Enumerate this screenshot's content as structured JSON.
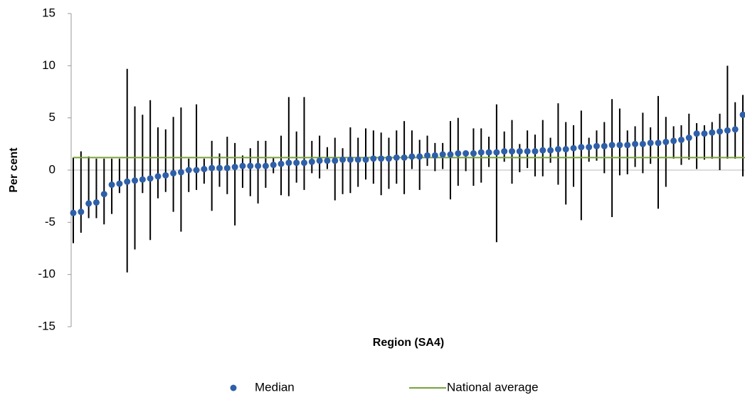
{
  "chart_data": {
    "type": "errorbar",
    "y_label": "Per cent",
    "x_label": "Region (SA4)",
    "categories": [
      null,
      null,
      null,
      null,
      null,
      null,
      null,
      null,
      null,
      null,
      null,
      null,
      null,
      null,
      null,
      null,
      null,
      null,
      null,
      null,
      null,
      null,
      null,
      null,
      null,
      null,
      null,
      null,
      null,
      null,
      null,
      null,
      null,
      null,
      null,
      null,
      null,
      null,
      null,
      null,
      null,
      null,
      null,
      null,
      null,
      null,
      null,
      null,
      null,
      null,
      null,
      null,
      null,
      null,
      null,
      null,
      null,
      null,
      null,
      null,
      null,
      null,
      null,
      null,
      null,
      null,
      null,
      null,
      null,
      null,
      null,
      null,
      null,
      null,
      null,
      null,
      null,
      null,
      null,
      null,
      null,
      null,
      null,
      null,
      null,
      null,
      null,
      null
    ],
    "series": [
      {
        "name": "Median",
        "color": "#2e5fa8",
        "values": [
          -4.1,
          -4.0,
          -3.2,
          -3.1,
          -2.3,
          -1.4,
          -1.3,
          -1.1,
          -1.0,
          -0.9,
          -0.8,
          -0.6,
          -0.5,
          -0.3,
          -0.2,
          0.0,
          0.0,
          0.1,
          0.2,
          0.2,
          0.2,
          0.3,
          0.4,
          0.4,
          0.4,
          0.4,
          0.5,
          0.6,
          0.7,
          0.7,
          0.7,
          0.8,
          0.9,
          0.9,
          0.9,
          1.0,
          1.0,
          1.0,
          1.0,
          1.1,
          1.1,
          1.1,
          1.2,
          1.2,
          1.3,
          1.3,
          1.4,
          1.4,
          1.5,
          1.5,
          1.6,
          1.6,
          1.6,
          1.7,
          1.7,
          1.7,
          1.8,
          1.8,
          1.8,
          1.8,
          1.8,
          1.9,
          1.9,
          2.0,
          2.0,
          2.1,
          2.2,
          2.2,
          2.3,
          2.3,
          2.4,
          2.4,
          2.4,
          2.5,
          2.5,
          2.6,
          2.6,
          2.7,
          2.8,
          2.9,
          3.1,
          3.5,
          3.5,
          3.6,
          3.7,
          3.8,
          3.9,
          5.3
        ],
        "low": [
          -7.0,
          -6.0,
          -4.6,
          -4.6,
          -5.2,
          -4.2,
          -2.2,
          -9.8,
          -7.6,
          -2.2,
          -6.7,
          -2.7,
          -2.1,
          -4.0,
          -5.9,
          -2.1,
          -1.9,
          -1.3,
          -3.9,
          -1.6,
          -2.3,
          -5.3,
          -1.7,
          -2.5,
          -3.2,
          -1.7,
          -0.3,
          -2.4,
          -2.5,
          -1.2,
          -1.9,
          -0.3,
          -0.8,
          0.1,
          -2.9,
          -2.3,
          -2.2,
          -1.6,
          -0.9,
          -1.3,
          -2.4,
          -1.8,
          -1.3,
          -2.3,
          0.1,
          -1.9,
          0.4,
          -0.1,
          0.1,
          -2.8,
          -1.5,
          -0.1,
          -1.5,
          -1.2,
          0.3,
          -6.9,
          0.8,
          -1.3,
          -0.2,
          0.2,
          -0.6,
          -0.6,
          0.7,
          -1.4,
          -3.3,
          -1.6,
          -4.8,
          0.8,
          0.9,
          -0.3,
          -4.5,
          -0.5,
          -0.4,
          0.3,
          -0.3,
          0.6,
          -3.7,
          -1.6,
          1.1,
          0.5,
          1.0,
          0.1,
          1.0,
          1.1,
          0.0,
          1.1,
          1.1,
          -0.6
        ],
        "high": [
          1.2,
          1.8,
          1.3,
          1.1,
          1.1,
          1.1,
          1.1,
          9.7,
          6.1,
          5.3,
          6.7,
          4.1,
          3.9,
          5.1,
          6.0,
          1.1,
          6.3,
          1.1,
          2.8,
          1.6,
          3.2,
          2.6,
          1.4,
          2.1,
          2.8,
          2.8,
          1.2,
          3.3,
          7.0,
          3.7,
          7.0,
          2.8,
          3.3,
          2.2,
          3.1,
          2.1,
          4.1,
          3.1,
          4.0,
          3.8,
          3.6,
          3.1,
          3.8,
          4.7,
          3.8,
          2.9,
          3.3,
          2.6,
          2.6,
          4.7,
          5.0,
          1.8,
          4.0,
          4.0,
          3.2,
          6.3,
          3.7,
          4.8,
          2.5,
          3.8,
          3.4,
          4.8,
          3.1,
          6.4,
          4.6,
          4.3,
          5.7,
          3.1,
          3.8,
          4.6,
          6.8,
          5.9,
          3.8,
          4.2,
          5.5,
          4.1,
          7.1,
          5.1,
          4.2,
          4.3,
          5.4,
          4.5,
          4.3,
          4.6,
          5.4,
          10.0,
          6.5,
          7.2
        ]
      },
      {
        "name": "National average",
        "color": "#77a33a",
        "value": 1.2
      }
    ],
    "ylim": [
      -15,
      15
    ],
    "yticks": [
      -15,
      -10,
      -5,
      0,
      5,
      10,
      15
    ]
  }
}
